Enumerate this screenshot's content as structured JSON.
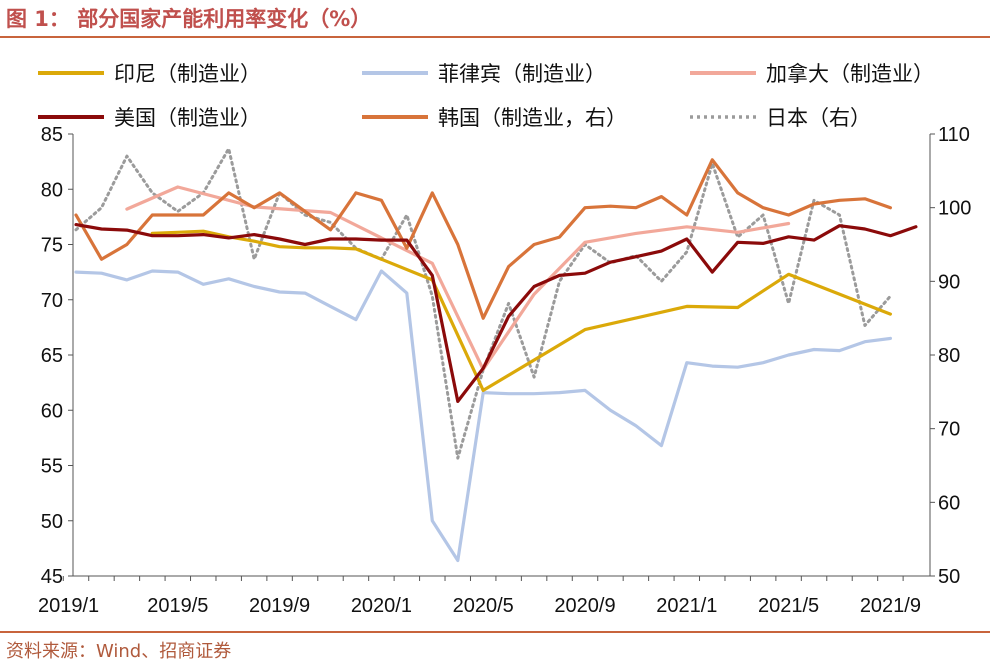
{
  "figure": {
    "title": "图 1：  部分国家产能利用率变化（%）",
    "source": "资料来源：Wind、招商证券"
  },
  "colors": {
    "india": "#dba909",
    "philippines": "#b4c6e6",
    "canada": "#f2a89a",
    "usa": "#8b0a0a",
    "korea": "#d8743a",
    "japan": "#9b9b9b",
    "accent": "#c8643c"
  },
  "chart_data": {
    "type": "line",
    "xlabel": "",
    "ylabel": "",
    "grid": false,
    "legend_position": "top",
    "x_tick_labels": [
      "2019/1",
      "2019/5",
      "2019/9",
      "2020/1",
      "2020/5",
      "2020/9",
      "2021/1",
      "2021/5",
      "2021/9"
    ],
    "y_left": {
      "min": 45,
      "max": 85,
      "ticks": [
        45,
        50,
        55,
        60,
        65,
        70,
        75,
        80,
        85
      ]
    },
    "y_right": {
      "min": 50,
      "max": 110,
      "ticks": [
        50,
        60,
        70,
        80,
        90,
        100,
        110
      ]
    },
    "months": [
      "2019/1",
      "2019/2",
      "2019/3",
      "2019/4",
      "2019/5",
      "2019/6",
      "2019/7",
      "2019/8",
      "2019/9",
      "2019/10",
      "2019/11",
      "2019/12",
      "2020/1",
      "2020/2",
      "2020/3",
      "2020/4",
      "2020/5",
      "2020/6",
      "2020/7",
      "2020/8",
      "2020/9",
      "2020/10",
      "2020/11",
      "2020/12",
      "2021/1",
      "2021/2",
      "2021/3",
      "2021/4",
      "2021/5",
      "2021/6",
      "2021/7",
      "2021/8",
      "2021/9",
      "2021/10"
    ],
    "series": [
      {
        "key": "usa",
        "name": "美国（制造业）",
        "axis": "left",
        "style": "solid",
        "values": [
          76.8,
          76.4,
          76.3,
          75.8,
          75.8,
          75.9,
          75.6,
          75.9,
          75.5,
          75.0,
          75.5,
          75.5,
          75.4,
          75.4,
          72.2,
          60.8,
          63.8,
          68.5,
          71.2,
          72.2,
          72.4,
          73.4,
          73.9,
          74.4,
          75.5,
          72.5,
          75.2,
          75.1,
          75.7,
          75.4,
          76.7,
          76.4,
          75.8,
          76.6
        ]
      },
      {
        "key": "india",
        "name": "印尼（制造业）",
        "axis": "left",
        "style": "solid",
        "values": [
          null,
          null,
          null,
          76.0,
          76.1,
          76.2,
          75.7,
          75.3,
          74.8,
          74.7,
          74.7,
          74.6,
          null,
          null,
          71.8,
          null,
          61.8,
          null,
          null,
          null,
          67.3,
          null,
          null,
          null,
          69.4,
          null,
          69.3,
          null,
          72.3,
          null,
          null,
          null,
          68.7,
          null
        ]
      },
      {
        "key": "philippines",
        "name": "菲律宾（制造业）",
        "axis": "left",
        "style": "solid",
        "values": [
          72.5,
          72.4,
          71.8,
          72.6,
          72.5,
          71.4,
          71.9,
          71.2,
          70.7,
          70.6,
          69.4,
          68.2,
          72.6,
          70.6,
          50.0,
          46.4,
          61.6,
          61.5,
          61.5,
          61.6,
          61.8,
          60.0,
          58.6,
          56.8,
          64.3,
          64.0,
          63.9,
          64.3,
          65.0,
          65.5,
          65.4,
          66.2,
          66.5,
          null
        ]
      },
      {
        "key": "canada",
        "name": "加拿大（制造业）",
        "axis": "left",
        "style": "solid",
        "values": [
          null,
          null,
          78.2,
          null,
          80.2,
          null,
          null,
          78.4,
          null,
          null,
          77.9,
          null,
          75.6,
          null,
          73.3,
          null,
          63.7,
          null,
          70.5,
          null,
          75.2,
          null,
          76.0,
          null,
          76.6,
          null,
          76.1,
          null,
          76.9,
          null,
          null,
          null,
          null,
          null
        ]
      },
      {
        "key": "korea",
        "name": "韩国（制造业，右）",
        "axis": "right",
        "style": "solid",
        "values": [
          99.0,
          93.0,
          95.0,
          99.0,
          99.0,
          99.0,
          102.0,
          100.0,
          102.0,
          99.5,
          97.0,
          102.0,
          101.0,
          94.5,
          102.0,
          95.0,
          85.0,
          92.0,
          95.0,
          96.0,
          100.0,
          100.2,
          100.0,
          101.5,
          99.0,
          106.5,
          102.0,
          100.0,
          99.0,
          100.5,
          101.0,
          101.2,
          100.0,
          null
        ]
      },
      {
        "key": "japan",
        "name": "日本（右）",
        "axis": "right",
        "style": "dotted",
        "values": [
          97.0,
          100.0,
          107.0,
          102.0,
          99.5,
          102.0,
          108.0,
          93.0,
          102.0,
          99.0,
          98.0,
          94.5,
          93.0,
          99.0,
          88.0,
          66.0,
          78.0,
          87.0,
          77.0,
          90.0,
          95.0,
          92.5,
          93.5,
          90.0,
          94.0,
          106.0,
          96.0,
          99.0,
          87.0,
          101.0,
          99.0,
          84.0,
          88.0,
          null
        ]
      }
    ]
  }
}
